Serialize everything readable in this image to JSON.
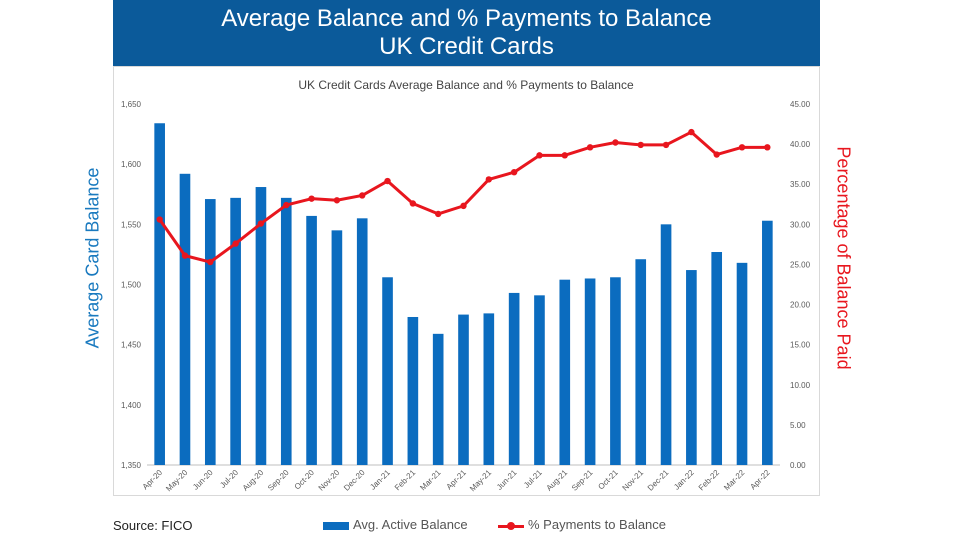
{
  "header": {
    "title_line1": "Average Balance and % Payments to Balance",
    "title_line2": "UK Credit Cards"
  },
  "source": "Source: FICO",
  "colors": {
    "header_bg": "#0b5a9a",
    "bar": "#0b6cbf",
    "line": "#e8161e",
    "left_axis_label": "#1a7abf"
  },
  "chart_data": {
    "type": "bar",
    "title": "UK Credit Cards Average Balance and % Payments to Balance",
    "ylabel_left": "Average Card Balance",
    "ylabel_right": "Percentage of Balance Paid",
    "ylim_left": [
      1350,
      1650
    ],
    "yticks_left": [
      "1,350",
      "1,400",
      "1,450",
      "1,500",
      "1,550",
      "1,600",
      "1,650"
    ],
    "ytick_values_left": [
      1350,
      1400,
      1450,
      1500,
      1550,
      1600,
      1650
    ],
    "ylim_right": [
      0,
      45
    ],
    "yticks_right": [
      "0.00",
      "5.00",
      "10.00",
      "15.00",
      "20.00",
      "25.00",
      "30.00",
      "35.00",
      "40.00",
      "45.00"
    ],
    "ytick_values_right": [
      0,
      5,
      10,
      15,
      20,
      25,
      30,
      35,
      40,
      45
    ],
    "categories": [
      "Apr-20",
      "May-20",
      "Jun-20",
      "Jul-20",
      "Aug-20",
      "Sep-20",
      "Oct-20",
      "Nov-20",
      "Dec-20",
      "Jan-21",
      "Feb-21",
      "Mar-21",
      "Apr-21",
      "May-21",
      "Jun-21",
      "Jul-21",
      "Aug-21",
      "Sep-21",
      "Oct-21",
      "Nov-21",
      "Dec-21",
      "Jan-22",
      "Feb-22",
      "Mar-22",
      "Apr-22"
    ],
    "series": [
      {
        "name": "Avg. Active Balance",
        "type": "bar",
        "axis": "left",
        "values": [
          1634,
          1592,
          1571,
          1572,
          1581,
          1572,
          1557,
          1545,
          1555,
          1506,
          1473,
          1459,
          1475,
          1476,
          1493,
          1491,
          1504,
          1505,
          1506,
          1521,
          1550,
          1512,
          1527,
          1518,
          1553
        ]
      },
      {
        "name": "% Payments to Balance",
        "type": "line",
        "axis": "right",
        "values": [
          30.6,
          26.1,
          25.3,
          27.6,
          30.1,
          32.4,
          33.2,
          33.0,
          33.6,
          35.4,
          32.6,
          31.3,
          32.3,
          35.6,
          36.5,
          38.6,
          38.6,
          39.6,
          40.2,
          39.9,
          39.9,
          41.5,
          38.7,
          39.6,
          39.6
        ]
      }
    ],
    "legend": [
      "Avg. Active Balance",
      "% Payments to Balance"
    ],
    "legend_position": "bottom",
    "grid": false
  }
}
